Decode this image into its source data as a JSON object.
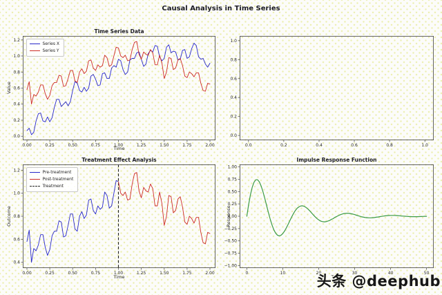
{
  "suptitle": "Causal Analysis in Time Series",
  "watermark": "头条 @deephub",
  "colors": {
    "blue": "#2626c9",
    "red": "#cd2a25",
    "green": "#3a9a45",
    "black": "#222222"
  },
  "chart_data": [
    {
      "id": "time-series-data",
      "type": "line",
      "title": "Time Series Data",
      "xlabel": "Time",
      "ylabel": "Value",
      "xlim": [
        -0.045,
        2.06
      ],
      "ylim": [
        -0.05,
        1.25
      ],
      "grid": false,
      "xticks": {
        "values": [
          0,
          0.25,
          0.5,
          0.75,
          1.0,
          1.25,
          1.5,
          1.75,
          2.0
        ],
        "labels": [
          "0.00",
          "0.25",
          "0.50",
          "0.75",
          "1.00",
          "1.25",
          "1.50",
          "1.75",
          "2.00"
        ]
      },
      "yticks": {
        "values": [
          0,
          0.2,
          0.4,
          0.6,
          0.8,
          1.0,
          1.2
        ],
        "labels": [
          "0.0",
          "0.2",
          "0.4",
          "0.6",
          "0.8",
          "1.0",
          "1.2"
        ]
      },
      "legend": {
        "position": "upper-left",
        "items": [
          {
            "label": "Series X",
            "color": "blue",
            "dash": false
          },
          {
            "label": "Series Y",
            "color": "red",
            "dash": false
          }
        ]
      },
      "series": [
        {
          "name": "Series X",
          "color": "blue",
          "width": 0.9,
          "x0": 0,
          "dx": 0.025,
          "y": [
            0.07,
            0.1,
            0.02,
            0.05,
            0.19,
            0.28,
            0.29,
            0.19,
            0.18,
            0.24,
            0.18,
            0.23,
            0.36,
            0.46,
            0.46,
            0.37,
            0.4,
            0.43,
            0.38,
            0.43,
            0.57,
            0.68,
            0.66,
            0.57,
            0.55,
            0.61,
            0.56,
            0.6,
            0.75,
            0.77,
            0.71,
            0.63,
            0.64,
            0.78,
            0.79,
            0.72,
            0.72,
            0.85,
            0.88,
            0.86,
            0.96,
            0.94,
            0.83,
            0.77,
            0.8,
            0.95,
            0.97,
            0.97,
            1.04,
            1.05,
            0.96,
            0.87,
            0.9,
            1.03,
            1.07,
            1.05,
            1.13,
            1.12,
            0.99,
            0.94,
            0.97,
            1.11,
            1.14,
            1.04,
            1.06,
            1.05,
            0.95,
            0.96,
            1.07,
            1.08,
            0.97,
            0.99,
            1.09,
            1.16,
            1.13,
            0.99,
            0.96,
            0.97,
            0.9,
            0.86,
            0.91
          ]
        },
        {
          "name": "Series Y",
          "color": "red",
          "width": 0.9,
          "x0": 0,
          "dx": 0.025,
          "y": [
            0.58,
            0.68,
            0.4,
            0.52,
            0.5,
            0.55,
            0.64,
            0.64,
            0.53,
            0.46,
            0.51,
            0.63,
            0.67,
            0.67,
            0.76,
            0.75,
            0.62,
            0.63,
            0.72,
            0.82,
            0.82,
            0.69,
            0.67,
            0.8,
            0.84,
            0.78,
            0.81,
            0.94,
            0.95,
            0.85,
            0.82,
            0.89,
            0.86,
            0.88,
            1.01,
            0.98,
            0.87,
            0.89,
            1.0,
            1.11,
            1.1,
            1.0,
            0.98,
            1.01,
            0.94,
            0.95,
            1.08,
            1.17,
            1.18,
            1.02,
            0.96,
            1.05,
            1.02,
            1.01,
            1.08,
            1.04,
            0.89,
            0.89,
            1.01,
            0.91,
            0.72,
            0.8,
            0.98,
            0.97,
            0.83,
            0.85,
            0.95,
            0.97,
            0.88,
            0.75,
            0.73,
            0.8,
            0.78,
            0.74,
            0.79,
            0.79,
            0.66,
            0.57,
            0.56,
            0.66,
            0.65
          ]
        }
      ]
    },
    {
      "id": "empty-panel",
      "type": "empty",
      "title": "",
      "xlabel": "",
      "ylabel": "",
      "xlim": [
        -0.05,
        1.05
      ],
      "ylim": [
        -0.05,
        1.05
      ],
      "grid": false,
      "xticks": {
        "values": [
          0,
          0.2,
          0.4,
          0.6,
          0.8,
          1.0
        ],
        "labels": [
          "0.0",
          "0.2",
          "0.4",
          "0.6",
          "0.8",
          "1.0"
        ]
      },
      "yticks": {
        "values": [
          0,
          0.2,
          0.4,
          0.6,
          0.8,
          1.0
        ],
        "labels": [
          "0.0",
          "0.2",
          "0.4",
          "0.6",
          "0.8",
          "1.0"
        ]
      },
      "series": []
    },
    {
      "id": "treatment-effect-analysis",
      "type": "line",
      "title": "Treatment Effect Analysis",
      "xlabel": "Time",
      "ylabel": "Outcome",
      "xlim": [
        -0.045,
        2.06
      ],
      "ylim": [
        0.35,
        1.25
      ],
      "grid": false,
      "xticks": {
        "values": [
          0,
          0.25,
          0.5,
          0.75,
          1.0,
          1.25,
          1.5,
          1.75,
          2.0
        ],
        "labels": [
          "0.00",
          "0.25",
          "0.50",
          "0.75",
          "1.00",
          "1.25",
          "1.50",
          "1.75",
          "2.00"
        ]
      },
      "yticks": {
        "values": [
          0.4,
          0.6,
          0.8,
          1.0,
          1.2
        ],
        "labels": [
          "0.4",
          "0.6",
          "0.8",
          "1.0",
          "1.2"
        ]
      },
      "legend": {
        "position": "upper-left",
        "items": [
          {
            "label": "Pre-treatment",
            "color": "blue",
            "dash": false
          },
          {
            "label": "Post-treatment",
            "color": "red",
            "dash": false
          },
          {
            "label": "Treatment",
            "color": "black",
            "dash": true
          }
        ]
      },
      "vlines": [
        {
          "x": 1.0,
          "label": "Treatment",
          "color": "black",
          "style": "dashed"
        }
      ],
      "series": [
        {
          "name": "Pre-treatment",
          "color": "blue",
          "width": 0.9,
          "x0": 0,
          "dx": 0.025,
          "y": [
            0.58,
            0.68,
            0.4,
            0.52,
            0.5,
            0.55,
            0.64,
            0.64,
            0.53,
            0.46,
            0.51,
            0.63,
            0.67,
            0.67,
            0.76,
            0.75,
            0.62,
            0.63,
            0.72,
            0.82,
            0.82,
            0.69,
            0.67,
            0.8,
            0.84,
            0.78,
            0.81,
            0.94,
            0.95,
            0.85,
            0.82,
            0.89,
            0.86,
            0.88,
            1.01,
            0.98,
            0.87,
            0.89,
            1.0,
            1.11,
            1.1
          ]
        },
        {
          "name": "Post-treatment",
          "color": "red",
          "width": 0.9,
          "x0": 1.0,
          "dx": 0.025,
          "y": [
            1.1,
            1.0,
            0.98,
            1.01,
            0.94,
            0.95,
            1.08,
            1.17,
            1.18,
            1.02,
            0.96,
            1.05,
            1.02,
            1.01,
            1.08,
            1.04,
            0.89,
            0.89,
            1.01,
            0.91,
            0.72,
            0.8,
            0.98,
            0.97,
            0.83,
            0.85,
            0.95,
            0.97,
            0.88,
            0.75,
            0.73,
            0.8,
            0.78,
            0.74,
            0.79,
            0.79,
            0.66,
            0.57,
            0.56,
            0.66,
            0.65
          ]
        }
      ]
    },
    {
      "id": "impulse-response-function",
      "type": "line",
      "title": "Impulse Response Function",
      "xlabel": "Time",
      "ylabel": "Response",
      "xlim": [
        -2,
        52
      ],
      "ylim": [
        -1.05,
        1.05
      ],
      "grid": false,
      "xticks": {
        "values": [
          0,
          10,
          20,
          30,
          40,
          50
        ],
        "labels": [
          "0",
          "10",
          "20",
          "30",
          "40",
          "50"
        ]
      },
      "yticks": {
        "values": [
          -1.0,
          -0.75,
          -0.5,
          -0.25,
          0,
          0.25,
          0.5,
          0.75,
          1.0
        ],
        "labels": [
          "−1.00",
          "−0.75",
          "−0.50",
          "−0.25",
          "0.00",
          "0.25",
          "0.50",
          "0.75",
          "1.00"
        ]
      },
      "series": [
        {
          "name": "Impulse response",
          "color": "green",
          "width": 1.2,
          "x0": 0,
          "dx": 0.5,
          "y": [
            0.0,
            0.235,
            0.434,
            0.587,
            0.689,
            0.739,
            0.739,
            0.694,
            0.609,
            0.496,
            0.363,
            0.22,
            0.077,
            -0.056,
            -0.174,
            -0.27,
            -0.34,
            -0.382,
            -0.398,
            -0.387,
            -0.353,
            -0.301,
            -0.235,
            -0.161,
            -0.084,
            -0.01,
            0.059,
            0.117,
            0.162,
            0.191,
            0.209,
            0.211,
            0.2,
            0.176,
            0.146,
            0.109,
            0.068,
            0.027,
            -0.011,
            -0.046,
            -0.074,
            -0.097,
            -0.108,
            -0.114,
            -0.111,
            -0.1,
            -0.087,
            -0.065,
            -0.049,
            -0.022,
            -0.005,
            0.014,
            0.031,
            0.044,
            0.054,
            0.058,
            0.06,
            0.058,
            0.051,
            0.043,
            0.033,
            0.021,
            0.01,
            -0.002,
            -0.012,
            -0.02,
            -0.026,
            -0.03,
            -0.032,
            -0.032,
            -0.029,
            -0.026,
            -0.02,
            -0.015,
            -0.009,
            -0.003,
            0.003,
            0.008,
            0.012,
            0.015,
            0.017,
            0.017,
            0.017,
            0.015,
            0.013,
            0.01,
            0.006,
            0.003,
            0.0,
            -0.003,
            -0.005,
            -0.007,
            -0.008,
            -0.009,
            -0.009,
            -0.009,
            -0.007,
            -0.006,
            -0.004,
            -0.002,
            -0.001
          ]
        }
      ]
    }
  ]
}
